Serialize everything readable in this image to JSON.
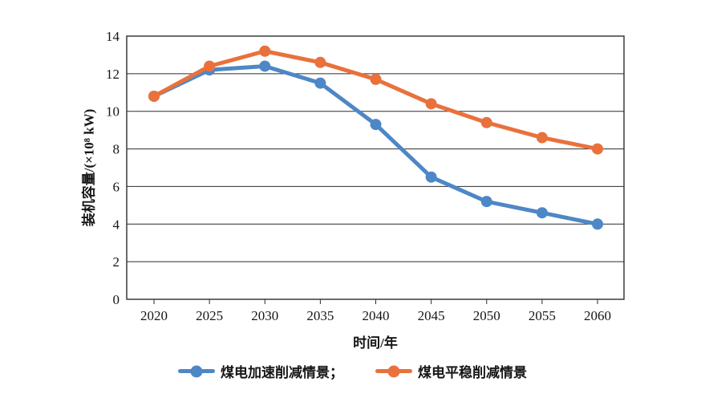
{
  "chart_data": {
    "type": "line",
    "x": [
      "2020",
      "2025",
      "2030",
      "2035",
      "2040",
      "2045",
      "2050",
      "2055",
      "2060"
    ],
    "series": [
      {
        "name": "煤电加速削减情景",
        "color": "#4E87C6",
        "values": [
          10.8,
          12.2,
          12.4,
          11.5,
          9.3,
          6.5,
          5.2,
          4.6,
          4.0
        ]
      },
      {
        "name": "煤电平稳削减情景",
        "color": "#E9713C",
        "values": [
          10.8,
          12.4,
          13.2,
          12.6,
          11.7,
          10.4,
          9.4,
          8.6,
          8.0
        ]
      }
    ],
    "title": "",
    "xlabel": "时间/年",
    "ylabel": "装机容量/(×10⁸ kW)",
    "ylim": [
      0,
      14
    ],
    "yticks": [
      0,
      2,
      4,
      6,
      8,
      10,
      12,
      14
    ],
    "grid": "horizontal",
    "legend_position": "bottom"
  },
  "legend": {
    "items": [
      {
        "label": "煤电加速削减情景；",
        "color": "#4E87C6"
      },
      {
        "label": "煤电平稳削减情景",
        "color": "#E9713C"
      }
    ]
  }
}
